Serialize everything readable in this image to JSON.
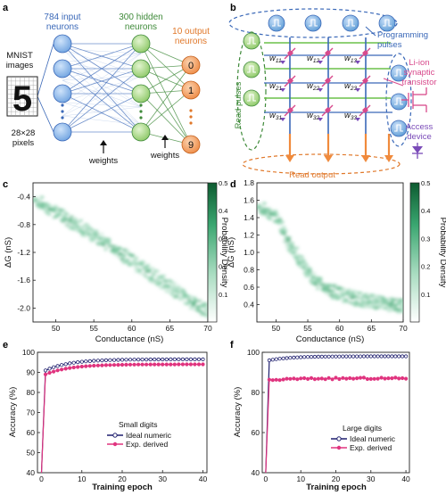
{
  "panels": {
    "a": "a",
    "b": "b",
    "c": "c",
    "d": "d",
    "e": "e",
    "f": "f"
  },
  "network": {
    "input_label": [
      "784 input",
      "neurons"
    ],
    "hidden_label": [
      "300 hidden",
      "neurons"
    ],
    "output_label": [
      "10 output",
      "neurons"
    ],
    "mnist_label": [
      "MNIST",
      "images"
    ],
    "pixel_label": [
      "28×28",
      "pixels"
    ],
    "digit": "5",
    "output_digits": [
      "0",
      "1",
      "9"
    ],
    "weights_label": "weights",
    "colors": {
      "input": "#7aaee6",
      "hidden": "#9ed37a",
      "output": "#f29a5a",
      "blue_line": "#3a68b8",
      "green_line": "#3f8a3a"
    }
  },
  "crossbar": {
    "programming_label": [
      "Programming",
      "pulses"
    ],
    "device_label": [
      "Li-ion",
      "synaptic",
      "transistor"
    ],
    "access_label": [
      "Access",
      "device"
    ],
    "read_pulses_label": "Read pulses",
    "read_output_label": "Read output",
    "weights": [
      [
        "w11",
        "w12",
        "w13"
      ],
      [
        "w21",
        "w22",
        "w23"
      ],
      [
        "w31",
        "w32",
        "w33"
      ]
    ],
    "colors": {
      "pulse": "#5b9bd5",
      "read": "#6cc04a",
      "output": "#f08a3c",
      "device": "#d84a8c"
    }
  },
  "chart_data": [
    {
      "panel": "c",
      "type": "heatmap",
      "xlabel": "Conductance (nS)",
      "ylabel": "ΔG (nS)",
      "colorbar_label": "Probability Density",
      "xlim": [
        47,
        70
      ],
      "ylim": [
        -2.2,
        -0.2
      ],
      "xticks": [
        50,
        55,
        60,
        65,
        70
      ],
      "yticks": [
        -0.4,
        -0.8,
        -1.2,
        -1.6,
        -2.0
      ],
      "cbar_range": [
        0,
        0.5
      ],
      "cbar_ticks": [
        0.1,
        0.2,
        0.3,
        0.4,
        0.5
      ],
      "trend": [
        [
          47.5,
          -0.45
        ],
        [
          50,
          -0.62
        ],
        [
          53,
          -0.82
        ],
        [
          56,
          -1.03
        ],
        [
          59,
          -1.25
        ],
        [
          62,
          -1.47
        ],
        [
          65,
          -1.7
        ],
        [
          68,
          -1.93
        ],
        [
          70,
          -2.05
        ]
      ]
    },
    {
      "panel": "d",
      "type": "heatmap",
      "xlabel": "Conductance (nS)",
      "ylabel": "ΔG (nS)",
      "colorbar_label": "Probability Density",
      "xlim": [
        47,
        70
      ],
      "ylim": [
        0.2,
        1.8
      ],
      "xticks": [
        50,
        55,
        60,
        65,
        70
      ],
      "yticks": [
        0.4,
        0.6,
        0.8,
        1.0,
        1.2,
        1.4,
        1.6,
        1.8
      ],
      "cbar_range": [
        0,
        0.5
      ],
      "cbar_ticks": [
        0.1,
        0.2,
        0.3,
        0.4,
        0.5
      ],
      "trend": [
        [
          47.5,
          1.52
        ],
        [
          50,
          1.42
        ],
        [
          52,
          1.12
        ],
        [
          54,
          0.88
        ],
        [
          56,
          0.68
        ],
        [
          58,
          0.58
        ],
        [
          60,
          0.52
        ],
        [
          63,
          0.46
        ],
        [
          66,
          0.42
        ],
        [
          70,
          0.38
        ]
      ]
    },
    {
      "panel": "e",
      "type": "line",
      "xlabel": "Training epoch",
      "ylabel": "Accuracy (%)",
      "legend_title": "Small digits",
      "xlim": [
        -1,
        41
      ],
      "ylim": [
        40,
        100
      ],
      "xticks": [
        0,
        10,
        20,
        30,
        40
      ],
      "yticks": [
        40,
        50,
        60,
        70,
        80,
        90,
        100
      ],
      "series": [
        {
          "name": "Ideal numeric",
          "color": "#1f1f6e",
          "start": 40,
          "jump": 91,
          "end": 96.5
        },
        {
          "name": "Exp. derived",
          "color": "#e0347f",
          "start": 40,
          "jump": 89,
          "end": 94
        }
      ]
    },
    {
      "panel": "f",
      "type": "line",
      "xlabel": "Training epoch",
      "ylabel": "Accuracy (%)",
      "legend_title": "Large digits",
      "xlim": [
        -1,
        41
      ],
      "ylim": [
        40,
        100
      ],
      "xticks": [
        0,
        10,
        20,
        30,
        40
      ],
      "yticks": [
        40,
        60,
        80,
        100
      ],
      "series": [
        {
          "name": "Ideal numeric",
          "color": "#1f1f6e",
          "start": 40,
          "jump": 96,
          "end": 98
        },
        {
          "name": "Exp. derived",
          "color": "#e0347f",
          "start": 40,
          "jump": 86,
          "end": 87
        }
      ]
    }
  ]
}
